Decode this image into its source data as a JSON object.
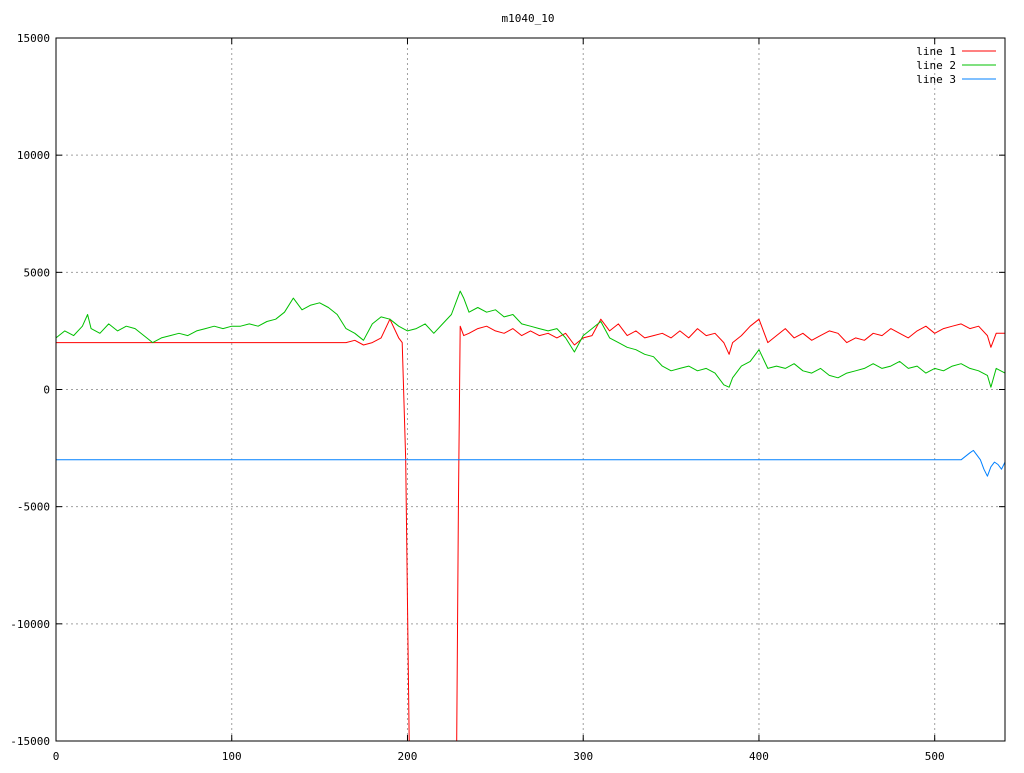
{
  "chart_data": {
    "type": "line",
    "title": "m1040_10",
    "xlabel": "",
    "ylabel": "",
    "xlim": [
      0,
      540
    ],
    "ylim": [
      -15000,
      15000
    ],
    "xticks": [
      "0",
      "100",
      "200",
      "300",
      "400",
      "500"
    ],
    "yticks": [
      "15000",
      "10000",
      "5000",
      "0",
      "-5000",
      "-10000",
      "-15000"
    ],
    "grid": true,
    "legend_position": "top-right",
    "series": [
      {
        "name": "line 1",
        "color": "#ff0000",
        "x": [
          0,
          50,
          100,
          150,
          165,
          170,
          175,
          180,
          185,
          190,
          195,
          197,
          199,
          201,
          203,
          228,
          229,
          230,
          232,
          235,
          240,
          245,
          250,
          255,
          260,
          265,
          270,
          275,
          280,
          285,
          290,
          295,
          300,
          305,
          310,
          315,
          320,
          325,
          330,
          335,
          340,
          345,
          350,
          355,
          360,
          365,
          370,
          375,
          380,
          383,
          385,
          390,
          395,
          400,
          405,
          410,
          415,
          420,
          425,
          430,
          435,
          440,
          445,
          450,
          455,
          460,
          465,
          470,
          475,
          480,
          485,
          490,
          495,
          500,
          505,
          510,
          515,
          520,
          525,
          530,
          532,
          535,
          540
        ],
        "y": [
          2000,
          2000,
          2000,
          2000,
          2000,
          2100,
          1900,
          2000,
          2200,
          3000,
          2200,
          2000,
          -3000,
          -15000,
          -15000,
          -15000,
          -5000,
          2700,
          2300,
          2400,
          2600,
          2700,
          2500,
          2400,
          2600,
          2300,
          2500,
          2300,
          2400,
          2200,
          2400,
          1900,
          2200,
          2300,
          3000,
          2500,
          2800,
          2300,
          2500,
          2200,
          2300,
          2400,
          2200,
          2500,
          2200,
          2600,
          2300,
          2400,
          2000,
          1500,
          2000,
          2300,
          2700,
          3000,
          2000,
          2300,
          2600,
          2200,
          2400,
          2100,
          2300,
          2500,
          2400,
          2000,
          2200,
          2100,
          2400,
          2300,
          2600,
          2400,
          2200,
          2500,
          2700,
          2400,
          2600,
          2700,
          2800,
          2600,
          2700,
          2300,
          1800,
          2400,
          2400
        ]
      },
      {
        "name": "line 2",
        "color": "#00c000",
        "x": [
          0,
          5,
          10,
          15,
          18,
          20,
          25,
          30,
          35,
          40,
          45,
          50,
          55,
          60,
          65,
          70,
          75,
          80,
          85,
          90,
          95,
          100,
          105,
          110,
          115,
          120,
          125,
          130,
          135,
          140,
          145,
          150,
          155,
          160,
          165,
          170,
          175,
          180,
          185,
          190,
          195,
          200,
          205,
          210,
          215,
          220,
          225,
          230,
          232,
          235,
          240,
          245,
          250,
          255,
          260,
          265,
          270,
          275,
          280,
          285,
          290,
          295,
          300,
          305,
          310,
          315,
          320,
          325,
          330,
          335,
          340,
          345,
          350,
          355,
          360,
          365,
          370,
          375,
          380,
          383,
          385,
          390,
          395,
          400,
          405,
          410,
          415,
          420,
          425,
          430,
          435,
          440,
          445,
          450,
          455,
          460,
          465,
          470,
          475,
          480,
          485,
          490,
          495,
          500,
          505,
          510,
          515,
          520,
          525,
          530,
          532,
          535,
          540
        ],
        "y": [
          2200,
          2500,
          2300,
          2700,
          3200,
          2600,
          2400,
          2800,
          2500,
          2700,
          2600,
          2300,
          2000,
          2200,
          2300,
          2400,
          2300,
          2500,
          2600,
          2700,
          2600,
          2700,
          2700,
          2800,
          2700,
          2900,
          3000,
          3300,
          3900,
          3400,
          3600,
          3700,
          3500,
          3200,
          2600,
          2400,
          2100,
          2800,
          3100,
          3000,
          2700,
          2500,
          2600,
          2800,
          2400,
          2800,
          3200,
          4200,
          3900,
          3300,
          3500,
          3300,
          3400,
          3100,
          3200,
          2800,
          2700,
          2600,
          2500,
          2600,
          2200,
          1600,
          2300,
          2600,
          2900,
          2200,
          2000,
          1800,
          1700,
          1500,
          1400,
          1000,
          800,
          900,
          1000,
          800,
          900,
          700,
          200,
          100,
          500,
          1000,
          1200,
          1700,
          900,
          1000,
          900,
          1100,
          800,
          700,
          900,
          600,
          500,
          700,
          800,
          900,
          1100,
          900,
          1000,
          1200,
          900,
          1000,
          700,
          900,
          800,
          1000,
          1100,
          900,
          800,
          600,
          100,
          900,
          700
        ]
      },
      {
        "name": "line 3",
        "color": "#0080ff",
        "x": [
          0,
          100,
          200,
          300,
          400,
          500,
          515,
          520,
          522,
          524,
          526,
          528,
          530,
          532,
          534,
          536,
          538,
          540
        ],
        "y": [
          -3000,
          -3000,
          -3000,
          -3000,
          -3000,
          -3000,
          -3000,
          -2700,
          -2600,
          -2800,
          -3000,
          -3400,
          -3700,
          -3300,
          -3100,
          -3200,
          -3400,
          -3100
        ]
      }
    ]
  }
}
